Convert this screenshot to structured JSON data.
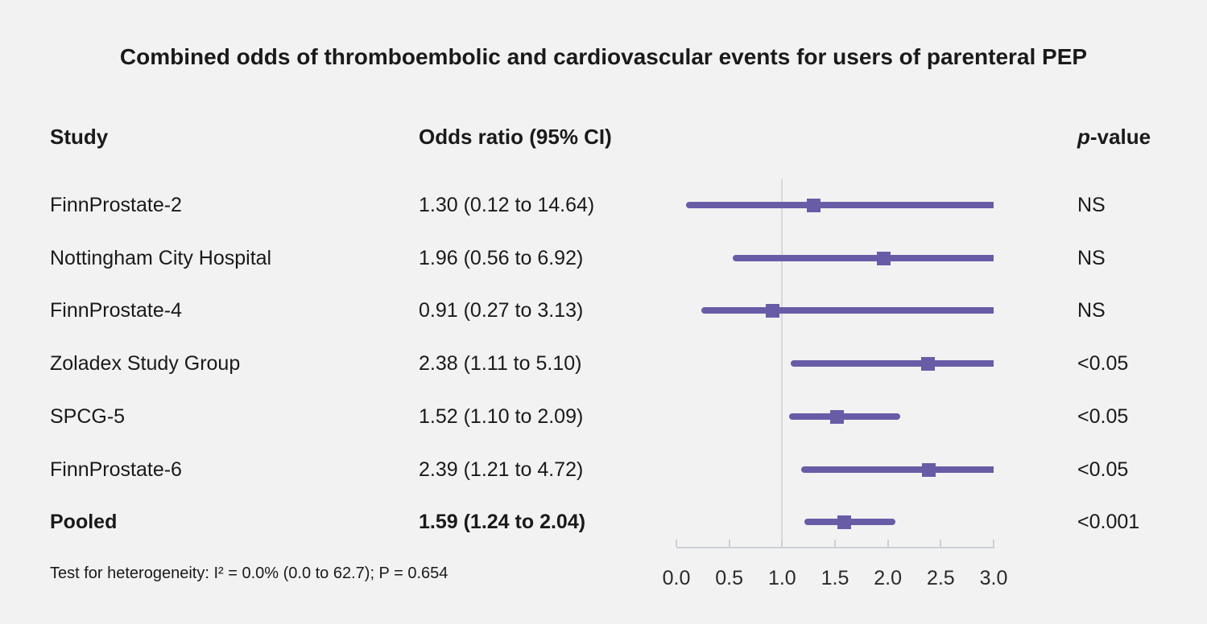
{
  "page": {
    "background": "#f2f2f2"
  },
  "table": {
    "headers": {
      "study": "Study",
      "odds_ratio": "Odds ratio (95% CI)",
      "p_italic": "p",
      "p_rest": "-value"
    }
  },
  "footnote": "Test for heterogeneity: I² = 0.0% (0.0 to 62.7); P = 0.654",
  "colors": {
    "accent_purple": "#695ca7",
    "guide_gray": "#d6dade",
    "text": "#1a1a1a"
  },
  "chart_data": {
    "type": "forest",
    "title": "Combined odds of thromboembolic and cardiovascular events for users of parenteral PEP",
    "xlim": [
      0,
      3
    ],
    "x_tick_values": [
      0,
      0.5,
      1,
      1.5,
      2,
      2.5,
      3
    ],
    "x_tick_labels": [
      "0.0",
      "0.5",
      "1.0",
      "1.5",
      "2.0",
      "2.5",
      "3.0"
    ],
    "reference_line": 1.0,
    "clip_max": 3.0,
    "grid": "off",
    "rows": [
      {
        "label": "FinnProstate-2",
        "or": 1.3,
        "ci_low": 0.12,
        "ci_high": 14.64,
        "or_text": "1.30 (0.12 to 14.64)",
        "p_value": "NS",
        "bold": false
      },
      {
        "label": "Nottingham City Hospital",
        "or": 1.96,
        "ci_low": 0.56,
        "ci_high": 6.92,
        "or_text": "1.96 (0.56 to 6.92)",
        "p_value": "NS",
        "bold": false
      },
      {
        "label": "FinnProstate-4",
        "or": 0.91,
        "ci_low": 0.27,
        "ci_high": 3.13,
        "or_text": "0.91 (0.27 to 3.13)",
        "p_value": "NS",
        "bold": false
      },
      {
        "label": "Zoladex Study Group",
        "or": 2.38,
        "ci_low": 1.11,
        "ci_high": 5.1,
        "or_text": "2.38 (1.11 to 5.10)",
        "p_value": "<0.05",
        "bold": false
      },
      {
        "label": "SPCG-5",
        "or": 1.52,
        "ci_low": 1.1,
        "ci_high": 2.09,
        "or_text": "1.52 (1.10 to 2.09)",
        "p_value": "<0.05",
        "bold": false
      },
      {
        "label": "FinnProstate-6",
        "or": 2.39,
        "ci_low": 1.21,
        "ci_high": 4.72,
        "or_text": "2.39 (1.21 to 4.72)",
        "p_value": "<0.05",
        "bold": false
      },
      {
        "label": "Pooled",
        "or": 1.59,
        "ci_low": 1.24,
        "ci_high": 2.04,
        "or_text": "1.59 (1.24 to 2.04)",
        "p_value": "<0.001",
        "bold": true
      }
    ]
  }
}
